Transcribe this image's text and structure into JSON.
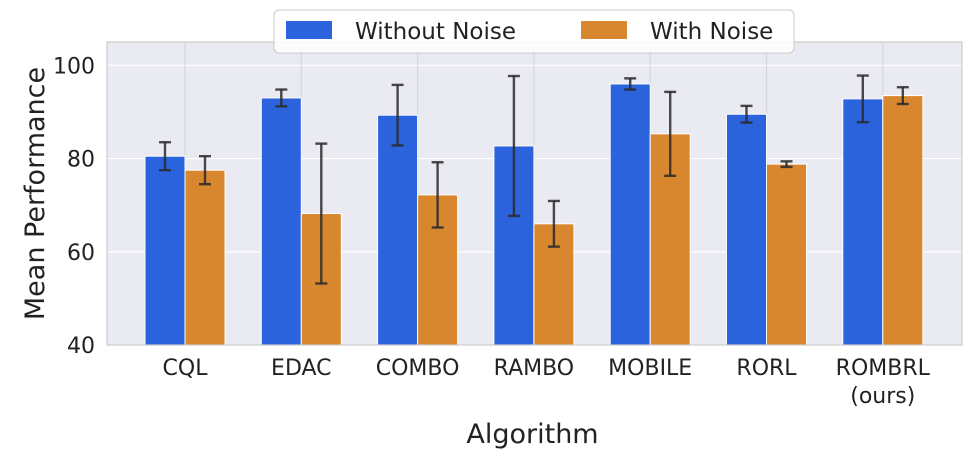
{
  "chart_data": {
    "type": "bar",
    "categories": [
      "CQL",
      "EDAC",
      "COMBO",
      "RAMBO",
      "MOBILE",
      "RORL",
      "ROMBRL\n(ours)"
    ],
    "series": [
      {
        "name": "Without Noise",
        "color": "#2b63dd",
        "values": [
          80.5,
          93.0,
          89.3,
          82.7,
          96.0,
          89.5,
          92.8
        ],
        "errors": [
          3.0,
          1.8,
          6.5,
          15.0,
          1.2,
          1.8,
          5.0
        ]
      },
      {
        "name": "With Noise",
        "color": "#d8872e",
        "values": [
          77.5,
          68.2,
          72.2,
          66.0,
          85.3,
          78.8,
          93.5
        ],
        "errors": [
          3.0,
          15.0,
          7.0,
          4.9,
          9.0,
          0.6,
          1.8
        ]
      }
    ],
    "xlabel": "Algorithm",
    "ylabel": "Mean Performance",
    "ylim": [
      40,
      105
    ],
    "yticks": [
      40,
      60,
      80,
      100
    ],
    "grid": true,
    "legend_position": "top-center",
    "background_color": "#eaeaf2"
  }
}
